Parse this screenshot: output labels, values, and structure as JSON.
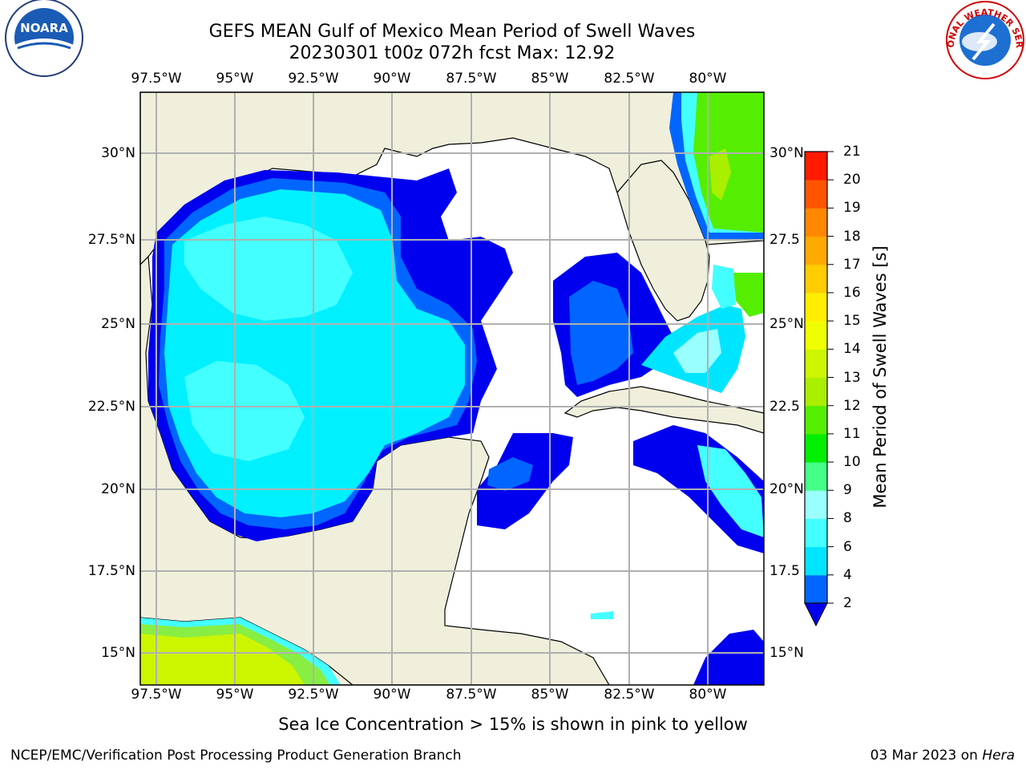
{
  "header": {
    "title": "GEFS MEAN Gulf of Mexico Mean Period of Swell Waves",
    "subtitle": "20230301 t00z 072h fcst   Max: 12.92"
  },
  "logos": {
    "left": {
      "name": "NOARA"
    },
    "right": {
      "name": "NATIONAL WEATHER SERVICE"
    }
  },
  "map": {
    "lon_ticks": [
      "97.5°W",
      "95°W",
      "92.5°W",
      "90°W",
      "87.5°W",
      "85°W",
      "82.5°W",
      "80°W"
    ],
    "lat_ticks_left": [
      "30°N",
      "27.5°N",
      "25°N",
      "22.5°N",
      "20°N",
      "17.5°N",
      "15°N"
    ],
    "lat_ticks_right": [
      "30°N",
      "27.5",
      "25°N",
      "22.5",
      "20°N",
      "17.5",
      "15°N"
    ],
    "land_color": "#efefdc",
    "ocean_color": "#ffffff",
    "grid_color": "#b0b0b0"
  },
  "colorbar": {
    "label": "Mean Period of Swell Waves [s]",
    "ticks": [
      "2",
      "4",
      "6",
      "8",
      "9",
      "10",
      "11",
      "12",
      "13",
      "14",
      "15",
      "16",
      "17",
      "18",
      "19",
      "20",
      "21"
    ],
    "colors": [
      "#0066ff",
      "#00e5ff",
      "#44ffff",
      "#99ffff",
      "#44ff88",
      "#00ee00",
      "#55ee00",
      "#aaee00",
      "#ccf500",
      "#f0ff00",
      "#ffee00",
      "#ffcc00",
      "#ffaa00",
      "#ff8800",
      "#ff5500",
      "#ff1a00"
    ],
    "under_color": "#0000ee"
  },
  "note": "Sea Ice Concentration > 15% is shown in pink to yellow",
  "footer": {
    "left": "NCEP/EMC/Verification Post Processing Product Generation Branch",
    "right_date": "03 Mar 2023 on ",
    "right_host": "Hera"
  }
}
